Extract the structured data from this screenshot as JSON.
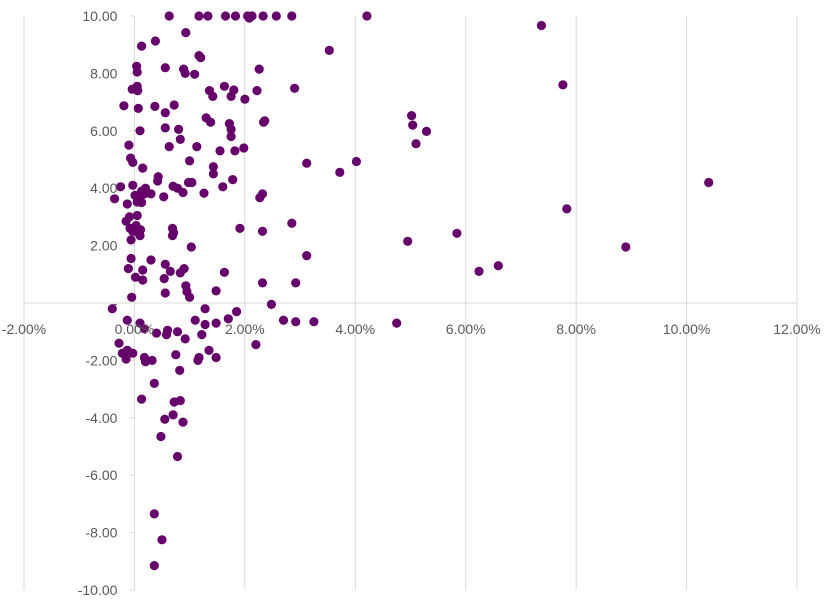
{
  "chart_data": {
    "type": "scatter",
    "title": "",
    "xlabel": "",
    "ylabel": "",
    "xlim": [
      -0.02,
      0.12
    ],
    "ylim": [
      -10,
      10
    ],
    "grid": "vertical-major",
    "point_color": "#66006A",
    "x_ticks": [
      {
        "value": -0.02,
        "label": "-2.00%"
      },
      {
        "value": 0.0,
        "label": "0.00%"
      },
      {
        "value": 0.02,
        "label": "2.00%"
      },
      {
        "value": 0.04,
        "label": "4.00%"
      },
      {
        "value": 0.06,
        "label": "6.00%"
      },
      {
        "value": 0.08,
        "label": "8.00%"
      },
      {
        "value": 0.1,
        "label": "10.00%"
      },
      {
        "value": 0.12,
        "label": "12.00%"
      }
    ],
    "y_ticks": [
      {
        "value": 10,
        "label": "10.00"
      },
      {
        "value": 8,
        "label": "8.00"
      },
      {
        "value": 6,
        "label": "6.00"
      },
      {
        "value": 4,
        "label": "4.00"
      },
      {
        "value": 2,
        "label": "2.00"
      },
      {
        "value": 0,
        "label": "-"
      },
      {
        "value": -2,
        "label": "-2.00"
      },
      {
        "value": -4,
        "label": "-4.00"
      },
      {
        "value": -6,
        "label": "-6.00"
      },
      {
        "value": -8,
        "label": "-8.00"
      },
      {
        "value": -10,
        "label": "-10.00"
      }
    ],
    "series": [
      {
        "points": [
          [
            0.0063,
            10.0
          ],
          [
            0.0117,
            10.0
          ],
          [
            0.0133,
            10.0
          ],
          [
            0.0165,
            10.0
          ],
          [
            0.0183,
            10.0
          ],
          [
            0.0205,
            10.0
          ],
          [
            0.0208,
            9.93
          ],
          [
            0.0213,
            10.0
          ],
          [
            0.0233,
            10.0
          ],
          [
            0.0257,
            10.0
          ],
          [
            0.0285,
            10.0
          ],
          [
            0.0421,
            10.0
          ],
          [
            0.0737,
            9.67
          ],
          [
            0.0353,
            8.8
          ],
          [
            0.0776,
            7.6
          ],
          [
            0.0104,
            4.2
          ],
          [
            0.104,
            4.2
          ],
          [
            0.0013,
            8.95
          ],
          [
            0.0038,
            9.13
          ],
          [
            0.0093,
            9.42
          ],
          [
            0.0117,
            8.62
          ],
          [
            0.012,
            8.55
          ],
          [
            0.0056,
            8.2
          ],
          [
            0.0004,
            8.25
          ],
          [
            0.0005,
            8.05
          ],
          [
            0.0089,
            8.15
          ],
          [
            0.0092,
            8.0
          ],
          [
            0.0109,
            7.97
          ],
          [
            0.0226,
            8.15
          ],
          [
            -0.0004,
            7.45
          ],
          [
            0.0005,
            7.55
          ],
          [
            0.0006,
            7.4
          ],
          [
            -0.0019,
            6.87
          ],
          [
            0.0007,
            6.78
          ],
          [
            0.0037,
            6.85
          ],
          [
            0.0072,
            6.9
          ],
          [
            0.0056,
            6.63
          ],
          [
            0.0136,
            7.4
          ],
          [
            0.0142,
            7.2
          ],
          [
            0.0163,
            7.55
          ],
          [
            0.0175,
            7.2
          ],
          [
            0.018,
            7.42
          ],
          [
            0.02,
            7.1
          ],
          [
            0.0222,
            7.4
          ],
          [
            0.029,
            7.48
          ],
          [
            0.013,
            6.45
          ],
          [
            0.0138,
            6.3
          ],
          [
            0.0056,
            6.1
          ],
          [
            0.008,
            6.05
          ],
          [
            0.001,
            6.0
          ],
          [
            0.0172,
            6.25
          ],
          [
            0.0175,
            6.05
          ],
          [
            0.0175,
            5.8
          ],
          [
            0.0236,
            6.35
          ],
          [
            0.0234,
            6.3
          ],
          [
            0.0502,
            6.53
          ],
          [
            0.0504,
            6.2
          ],
          [
            0.0529,
            5.98
          ],
          [
            0.051,
            5.55
          ],
          [
            -0.001,
            5.5
          ],
          [
            -0.0007,
            5.05
          ],
          [
            -0.0003,
            4.9
          ],
          [
            0.0015,
            4.7
          ],
          [
            0.0063,
            5.45
          ],
          [
            0.0083,
            5.7
          ],
          [
            0.01,
            4.95
          ],
          [
            0.0113,
            5.45
          ],
          [
            0.0155,
            5.3
          ],
          [
            0.0182,
            5.3
          ],
          [
            0.0198,
            5.4
          ],
          [
            0.0143,
            4.75
          ],
          [
            0.0143,
            4.5
          ],
          [
            0.0312,
            4.87
          ],
          [
            0.0372,
            4.55
          ],
          [
            0.0402,
            4.93
          ],
          [
            -0.0025,
            4.05
          ],
          [
            -0.0003,
            4.1
          ],
          [
            0.0001,
            3.75
          ],
          [
            0.0008,
            3.7
          ],
          [
            0.0013,
            3.9
          ],
          [
            0.0018,
            3.8
          ],
          [
            0.0043,
            4.4
          ],
          [
            0.0042,
            4.25
          ],
          [
            0.0053,
            3.7
          ],
          [
            0.007,
            4.07
          ],
          [
            0.0078,
            4.0
          ],
          [
            0.0088,
            3.85
          ],
          [
            0.0098,
            4.2
          ],
          [
            0.0126,
            3.83
          ],
          [
            0.016,
            4.05
          ],
          [
            0.0178,
            4.3
          ],
          [
            0.0227,
            3.67
          ],
          [
            0.0232,
            3.8
          ],
          [
            0.002,
            4.0
          ],
          [
            0.003,
            3.8
          ],
          [
            -0.0036,
            3.63
          ],
          [
            -0.0013,
            3.45
          ],
          [
            0.0005,
            3.52
          ],
          [
            0.001,
            3.6
          ],
          [
            0.0013,
            3.5
          ],
          [
            -0.0015,
            2.85
          ],
          [
            -0.0009,
            3.0
          ],
          [
            0.0005,
            3.05
          ],
          [
            0.0003,
            2.7
          ],
          [
            -0.0008,
            2.6
          ],
          [
            -0.0003,
            2.5
          ],
          [
            0.0007,
            2.45
          ],
          [
            0.0011,
            2.55
          ],
          [
            0.001,
            2.35
          ],
          [
            -0.0006,
            2.2
          ],
          [
            0.0069,
            2.6
          ],
          [
            0.0071,
            2.45
          ],
          [
            0.0069,
            2.35
          ],
          [
            0.0191,
            2.6
          ],
          [
            0.0232,
            2.5
          ],
          [
            0.0285,
            2.78
          ],
          [
            0.0783,
            3.28
          ],
          [
            0.0103,
            1.95
          ],
          [
            -0.0006,
            1.55
          ],
          [
            0.003,
            1.5
          ],
          [
            -0.0011,
            1.2
          ],
          [
            0.0015,
            1.15
          ],
          [
            0.0056,
            1.35
          ],
          [
            0.0065,
            1.1
          ],
          [
            0.009,
            1.2
          ],
          [
            0.0083,
            1.05
          ],
          [
            0.0163,
            1.07
          ],
          [
            0.0002,
            0.9
          ],
          [
            0.0015,
            0.8
          ],
          [
            0.0054,
            0.85
          ],
          [
            0.0093,
            0.6
          ],
          [
            0.0095,
            0.4
          ],
          [
            0.01,
            0.2
          ],
          [
            0.0148,
            0.42
          ],
          [
            0.0056,
            0.35
          ],
          [
            -0.0005,
            0.2
          ],
          [
            0.0232,
            0.7
          ],
          [
            0.0292,
            0.7
          ],
          [
            0.0312,
            1.65
          ],
          [
            0.0495,
            2.15
          ],
          [
            0.0584,
            2.43
          ],
          [
            0.0624,
            1.1
          ],
          [
            0.0659,
            1.3
          ],
          [
            0.089,
            1.95
          ],
          [
            -0.004,
            -0.2
          ],
          [
            0.0248,
            -0.05
          ],
          [
            0.0128,
            -0.2
          ],
          [
            0.0185,
            -0.3
          ],
          [
            0.027,
            -0.6
          ],
          [
            0.0292,
            -0.65
          ],
          [
            0.0325,
            -0.65
          ],
          [
            0.0475,
            -0.7
          ],
          [
            0.0148,
            -0.7
          ],
          [
            0.017,
            -0.55
          ],
          [
            0.011,
            -0.6
          ],
          [
            0.0128,
            -0.75
          ],
          [
            -0.0013,
            -0.6
          ],
          [
            0.001,
            -0.7
          ],
          [
            0.0018,
            -0.9
          ],
          [
            0.004,
            -1.05
          ],
          [
            0.006,
            -0.95
          ],
          [
            0.0058,
            -1.1
          ],
          [
            0.0078,
            -1.0
          ],
          [
            0.0092,
            -1.25
          ],
          [
            0.0122,
            -1.1
          ],
          [
            0.022,
            -1.45
          ],
          [
            -0.0028,
            -1.4
          ],
          [
            -0.0022,
            -1.75
          ],
          [
            -0.0013,
            -1.65
          ],
          [
            -0.0003,
            -1.75
          ],
          [
            -0.0015,
            -1.95
          ],
          [
            0.0018,
            -1.9
          ],
          [
            0.002,
            -2.05
          ],
          [
            0.0032,
            -2.0
          ],
          [
            0.0075,
            -1.8
          ],
          [
            0.0115,
            -2.0
          ],
          [
            0.0117,
            -1.9
          ],
          [
            0.0135,
            -1.65
          ],
          [
            0.0148,
            -1.9
          ],
          [
            0.0082,
            -2.35
          ],
          [
            0.0013,
            -3.35
          ],
          [
            0.0036,
            -2.8
          ],
          [
            0.0072,
            -3.45
          ],
          [
            0.0083,
            -3.4
          ],
          [
            0.007,
            -3.9
          ],
          [
            0.0088,
            -4.15
          ],
          [
            0.0055,
            -4.05
          ],
          [
            0.0048,
            -4.65
          ],
          [
            0.0078,
            -5.35
          ],
          [
            0.0036,
            -7.35
          ],
          [
            0.005,
            -8.25
          ],
          [
            0.0036,
            -9.15
          ]
        ]
      }
    ]
  }
}
